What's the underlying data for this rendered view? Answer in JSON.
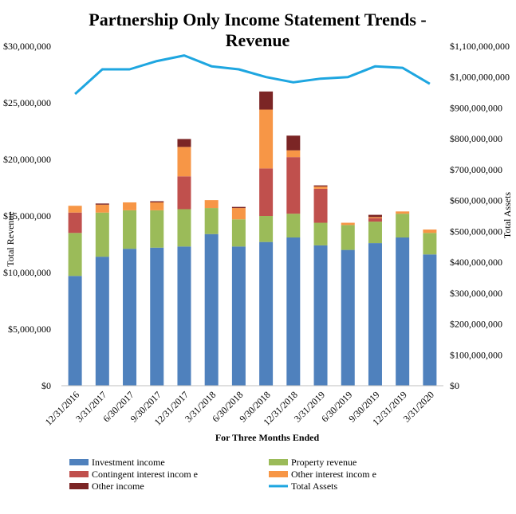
{
  "chart_data": {
    "type": "bar",
    "title_line1": "Partnership Only Income Statement Trends -",
    "title_line2": "Revenue",
    "xlabel": "For Three Months  Ended",
    "ylabel": "Total Revenue",
    "y2label": "Total Assets",
    "ylim": [
      0,
      30000000
    ],
    "y2lim": [
      0,
      1100000000
    ],
    "yticks": [
      "$0",
      "$5,000,000",
      "$10,000,000",
      "$15,000,000",
      "$20,000,000",
      "$25,000,000",
      "$30,000,000"
    ],
    "y2ticks": [
      "$0",
      "$100,000,000",
      "$200,000,000",
      "$300,000,000",
      "$400,000,000",
      "$500,000,000",
      "$600,000,000",
      "$700,000,000",
      "$800,000,000",
      "$900,000,000",
      "$1,000,000,000",
      "$1,100,000,000"
    ],
    "grid": false,
    "legend_position": "bottom",
    "categories": [
      "12/31/2016",
      "3/31/2017",
      "6/30/2017",
      "9/30/2017",
      "12/31/2017",
      "3/31/2018",
      "6/30/2018",
      "9/30/2018",
      "12/31/2018",
      "3/31/2019",
      "6/30/2019",
      "9/30/2019",
      "12/31/2019",
      "3/31/2020"
    ],
    "series": [
      {
        "name": "Investment income",
        "color": "#4f81bd",
        "values": [
          9700000,
          11400000,
          12100000,
          12200000,
          12300000,
          13400000,
          12300000,
          12700000,
          13100000,
          12400000,
          12000000,
          12600000,
          13100000,
          11600000
        ]
      },
      {
        "name": "Property revenue",
        "color": "#9bbb59",
        "values": [
          3800000,
          3900000,
          3400000,
          3300000,
          3300000,
          2300000,
          2400000,
          2300000,
          2100000,
          2000000,
          2200000,
          1900000,
          2100000,
          1900000
        ]
      },
      {
        "name": "Contingent interest income",
        "color": "#c0504d",
        "values": [
          1800000,
          0,
          0,
          0,
          2900000,
          0,
          0,
          4200000,
          5000000,
          3000000,
          0,
          300000,
          0,
          0
        ]
      },
      {
        "name": "Other interest income",
        "color": "#f79646",
        "values": [
          600000,
          700000,
          700000,
          700000,
          2600000,
          700000,
          1000000,
          5200000,
          600000,
          200000,
          200000,
          100000,
          200000,
          300000
        ]
      },
      {
        "name": "Other income",
        "color": "#7b2525",
        "values": [
          0,
          100000,
          0,
          100000,
          700000,
          0,
          100000,
          1600000,
          1300000,
          100000,
          0,
          200000,
          0,
          0
        ]
      }
    ],
    "line_series": {
      "name": "Total Assets",
      "color": "#1ea6e0",
      "axis": "secondary",
      "values": [
        945000000,
        1025000000,
        1025000000,
        1052000000,
        1070000000,
        1035000000,
        1025000000,
        1000000000,
        983000000,
        995000000,
        1000000000,
        1035000000,
        1030000000,
        978000000
      ]
    },
    "legend": [
      {
        "label": "Investment income",
        "kind": "bar",
        "color": "#4f81bd"
      },
      {
        "label": "Property revenue",
        "kind": "bar",
        "color": "#9bbb59"
      },
      {
        "label": "Contingent interest incom e",
        "kind": "bar",
        "color": "#c0504d"
      },
      {
        "label": "Other interest incom e",
        "kind": "bar",
        "color": "#f79646"
      },
      {
        "label": "Other income",
        "kind": "bar",
        "color": "#7b2525"
      },
      {
        "label": "Total Assets",
        "kind": "line",
        "color": "#1ea6e0"
      }
    ]
  }
}
